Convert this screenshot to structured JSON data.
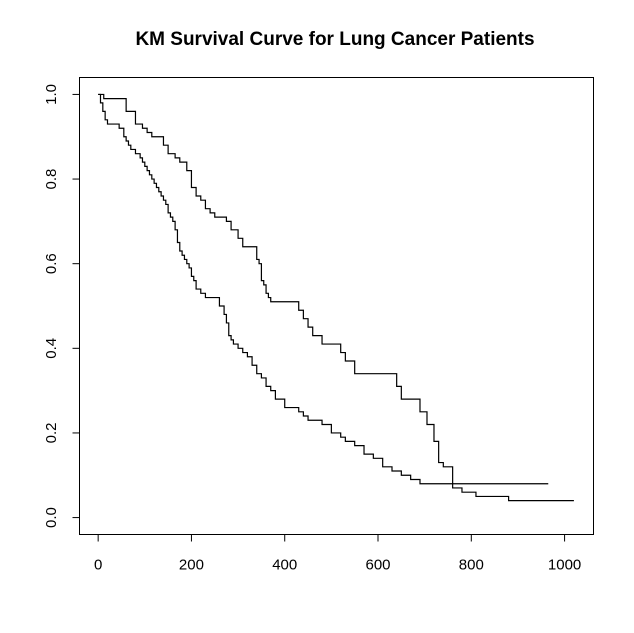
{
  "chart_data": {
    "type": "line",
    "step": true,
    "title": "KM Survival Curve for Lung Cancer Patients",
    "xlabel": "",
    "ylabel": "",
    "xlim": [
      -40,
      1062
    ],
    "ylim": [
      -0.04,
      1.04
    ],
    "x_ticks": [
      0,
      200,
      400,
      600,
      800,
      1000
    ],
    "y_ticks": [
      0.0,
      0.2,
      0.4,
      0.6,
      0.8,
      1.0
    ],
    "x_tick_labels": [
      "0",
      "200",
      "400",
      "600",
      "800",
      "1000"
    ],
    "y_tick_labels": [
      "0.0",
      "0.2",
      "0.4",
      "0.6",
      "0.8",
      "1.0"
    ],
    "grid": false,
    "line_color": "#000000",
    "series": [
      {
        "x": [
          0,
          12,
          18,
          30,
          60,
          80,
          95,
          105,
          115,
          125,
          140,
          150,
          165,
          175,
          180,
          190,
          200,
          210,
          220,
          230,
          240,
          250,
          262,
          275,
          285,
          300,
          310,
          330,
          340,
          345,
          350,
          355,
          360,
          365,
          370,
          380,
          430,
          440,
          450,
          460,
          470,
          480,
          520,
          530,
          550,
          640,
          650,
          660,
          690,
          700,
          705,
          710,
          720,
          730,
          740,
          760,
          965
        ],
        "y": [
          1.0,
          0.99,
          0.99,
          0.99,
          0.96,
          0.93,
          0.92,
          0.91,
          0.9,
          0.9,
          0.88,
          0.86,
          0.85,
          0.84,
          0.84,
          0.82,
          0.78,
          0.76,
          0.75,
          0.73,
          0.72,
          0.71,
          0.71,
          0.7,
          0.68,
          0.66,
          0.64,
          0.64,
          0.61,
          0.6,
          0.56,
          0.55,
          0.53,
          0.52,
          0.51,
          0.51,
          0.49,
          0.47,
          0.45,
          0.43,
          0.43,
          0.41,
          0.39,
          0.37,
          0.34,
          0.31,
          0.28,
          0.28,
          0.25,
          0.25,
          0.22,
          0.22,
          0.18,
          0.13,
          0.12,
          0.08,
          0.08
        ]
      },
      {
        "x": [
          0,
          5,
          10,
          15,
          20,
          30,
          45,
          55,
          60,
          65,
          70,
          80,
          90,
          95,
          100,
          105,
          110,
          115,
          120,
          125,
          130,
          135,
          140,
          145,
          150,
          155,
          160,
          165,
          170,
          175,
          180,
          185,
          190,
          195,
          200,
          205,
          210,
          220,
          230,
          240,
          260,
          270,
          275,
          280,
          285,
          290,
          300,
          310,
          320,
          330,
          340,
          350,
          360,
          370,
          380,
          400,
          430,
          440,
          450,
          460,
          480,
          500,
          520,
          530,
          550,
          570,
          590,
          610,
          630,
          650,
          670,
          690,
          710,
          740,
          760,
          780,
          800,
          810,
          880,
          1020
        ],
        "y": [
          1.0,
          0.98,
          0.96,
          0.94,
          0.93,
          0.93,
          0.92,
          0.9,
          0.89,
          0.88,
          0.87,
          0.86,
          0.85,
          0.84,
          0.83,
          0.82,
          0.81,
          0.8,
          0.79,
          0.78,
          0.77,
          0.76,
          0.75,
          0.74,
          0.72,
          0.71,
          0.7,
          0.68,
          0.65,
          0.63,
          0.62,
          0.61,
          0.6,
          0.59,
          0.57,
          0.56,
          0.54,
          0.53,
          0.52,
          0.52,
          0.5,
          0.48,
          0.46,
          0.43,
          0.42,
          0.41,
          0.4,
          0.39,
          0.38,
          0.36,
          0.34,
          0.33,
          0.31,
          0.3,
          0.28,
          0.26,
          0.25,
          0.24,
          0.23,
          0.23,
          0.22,
          0.2,
          0.19,
          0.18,
          0.17,
          0.15,
          0.14,
          0.12,
          0.11,
          0.1,
          0.09,
          0.08,
          0.08,
          0.08,
          0.07,
          0.06,
          0.06,
          0.05,
          0.04,
          0.04
        ]
      }
    ]
  }
}
